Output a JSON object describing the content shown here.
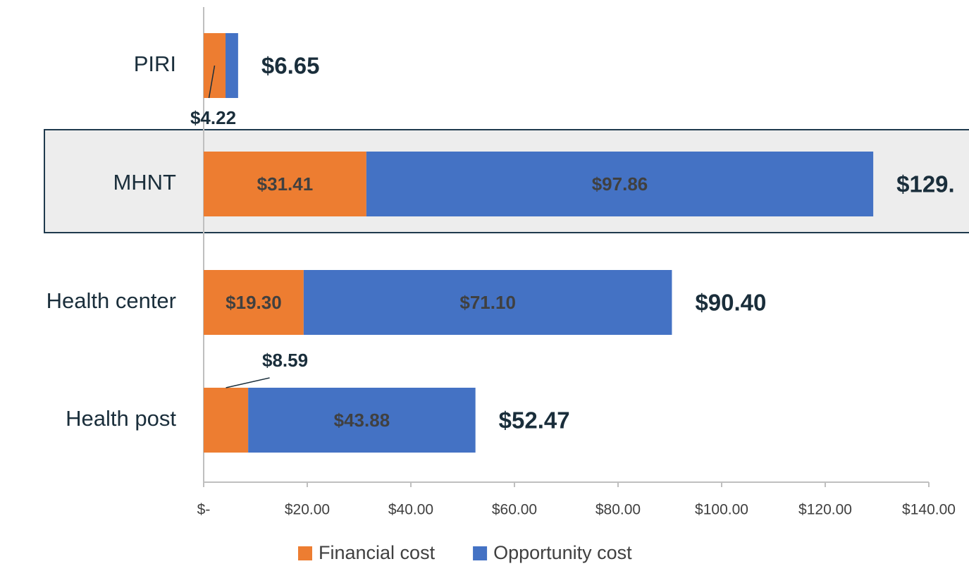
{
  "chart_data": {
    "type": "stacked-bar-horizontal",
    "categories": [
      "PIRI",
      "MHNT",
      "Health center",
      "Health post"
    ],
    "series": [
      {
        "name": "Financial cost",
        "color": "#ed7d31",
        "values": [
          4.22,
          31.41,
          19.3,
          8.59
        ],
        "value_labels": [
          "$4.22",
          "$31.41",
          "$19.30",
          "$8.59"
        ]
      },
      {
        "name": "Opportunity cost",
        "color": "#4472c4",
        "values": [
          2.43,
          97.86,
          71.1,
          43.88
        ],
        "value_labels": [
          null,
          "$97.86",
          "$71.10",
          "$43.88"
        ]
      }
    ],
    "totals": {
      "values": [
        6.65,
        129.27,
        90.4,
        52.47
      ],
      "value_labels": [
        "$6.65",
        "$129.",
        "$90.40",
        "$52.47"
      ]
    },
    "xlim": [
      0,
      140
    ],
    "xticks": [
      {
        "value": 0,
        "label": "$-"
      },
      {
        "value": 20,
        "label": "$20.00"
      },
      {
        "value": 40,
        "label": "$40.00"
      },
      {
        "value": 60,
        "label": "$60.00"
      },
      {
        "value": 80,
        "label": "$80.00"
      },
      {
        "value": 100,
        "label": "$100.00"
      },
      {
        "value": 120,
        "label": "$120.00"
      },
      {
        "value": 140,
        "label": "$140.00"
      }
    ],
    "legend": "bottom"
  }
}
